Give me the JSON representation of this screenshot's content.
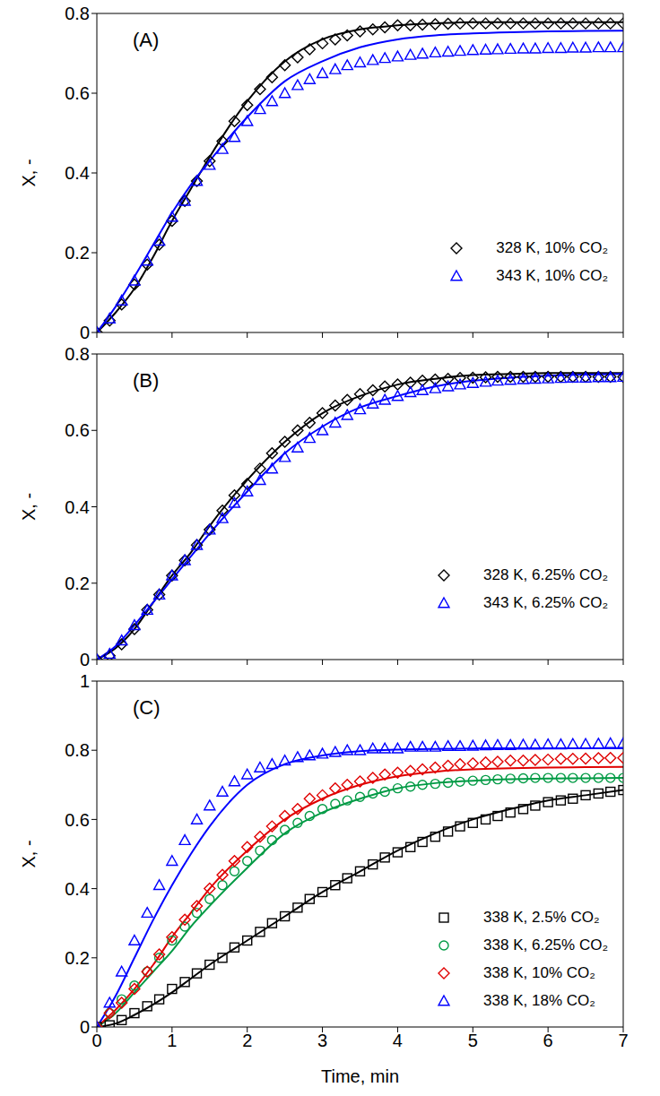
{
  "chart_data": [
    {
      "type": "scatter",
      "annotations": [
        "(A)"
      ],
      "y_label": "X, -",
      "x": [
        0,
        0.17,
        0.33,
        0.5,
        0.67,
        0.83,
        1,
        1.17,
        1.33,
        1.5,
        1.67,
        1.83,
        2,
        2.17,
        2.33,
        2.5,
        2.67,
        2.83,
        3,
        3.17,
        3.33,
        3.5,
        3.67,
        3.83,
        4,
        4.17,
        4.33,
        4.5,
        4.67,
        4.83,
        5,
        5.17,
        5.33,
        5.5,
        5.67,
        5.83,
        6,
        6.17,
        6.33,
        6.5,
        6.67,
        6.83,
        7
      ],
      "fit_x": [
        0,
        0.25,
        0.5,
        0.75,
        1,
        1.25,
        1.5,
        2,
        2.5,
        3,
        3.5,
        4,
        4.5,
        5,
        5.5,
        6,
        6.5,
        7
      ],
      "xlim": [
        0,
        7
      ],
      "xticks": [
        0,
        1,
        2,
        3,
        4,
        5,
        6,
        7
      ],
      "ylim": [
        0,
        0.8
      ],
      "yticks": [
        0,
        0.2,
        0.4,
        0.6,
        0.8
      ],
      "tick_labels": "y",
      "grid": false,
      "legend": "lower right",
      "series": [
        {
          "name": "328 K, 10% CO₂",
          "color": "#000000",
          "marker": "diamond",
          "line_style": "solid",
          "values": [
            0,
            0.03,
            0.07,
            0.12,
            0.17,
            0.22,
            0.28,
            0.33,
            0.38,
            0.43,
            0.48,
            0.53,
            0.57,
            0.61,
            0.64,
            0.67,
            0.69,
            0.71,
            0.725,
            0.735,
            0.745,
            0.755,
            0.76,
            0.765,
            0.77,
            0.77,
            0.772,
            0.773,
            0.774,
            0.775,
            0.775,
            0.775,
            0.775,
            0.775,
            0.775,
            0.775,
            0.775,
            0.775,
            0.775,
            0.775,
            0.775,
            0.775,
            0.775
          ],
          "fit": [
            0,
            0.05,
            0.11,
            0.19,
            0.28,
            0.36,
            0.44,
            0.58,
            0.68,
            0.735,
            0.76,
            0.77,
            0.775,
            0.778,
            0.778,
            0.778,
            0.778,
            0.778
          ]
        },
        {
          "name": "343 K, 10% CO₂",
          "color": "#0000ff",
          "marker": "triangle",
          "line_style": "solid",
          "values": [
            0,
            0.035,
            0.08,
            0.13,
            0.18,
            0.23,
            0.29,
            0.33,
            0.38,
            0.42,
            0.46,
            0.49,
            0.53,
            0.56,
            0.58,
            0.6,
            0.62,
            0.635,
            0.65,
            0.66,
            0.67,
            0.677,
            0.683,
            0.688,
            0.692,
            0.696,
            0.699,
            0.702,
            0.704,
            0.706,
            0.708,
            0.709,
            0.71,
            0.711,
            0.712,
            0.712,
            0.713,
            0.713,
            0.714,
            0.714,
            0.715,
            0.715,
            0.715
          ],
          "fit": [
            0,
            0.065,
            0.14,
            0.22,
            0.3,
            0.37,
            0.43,
            0.54,
            0.63,
            0.68,
            0.715,
            0.735,
            0.745,
            0.75,
            0.753,
            0.755,
            0.756,
            0.757
          ]
        }
      ]
    },
    {
      "type": "scatter",
      "annotations": [
        "(B)"
      ],
      "y_label": "X, -",
      "x": [
        0,
        0.17,
        0.33,
        0.5,
        0.67,
        0.83,
        1,
        1.17,
        1.33,
        1.5,
        1.67,
        1.83,
        2,
        2.17,
        2.33,
        2.5,
        2.67,
        2.83,
        3,
        3.17,
        3.33,
        3.5,
        3.67,
        3.83,
        4,
        4.17,
        4.33,
        4.5,
        4.67,
        4.83,
        5,
        5.17,
        5.33,
        5.5,
        5.67,
        5.83,
        6,
        6.17,
        6.33,
        6.5,
        6.67,
        6.83,
        7
      ],
      "fit_x": [
        0,
        0.25,
        0.5,
        0.75,
        1,
        1.25,
        1.5,
        2,
        2.5,
        3,
        3.5,
        4,
        4.5,
        5,
        5.5,
        6,
        6.5,
        7
      ],
      "xlim": [
        0,
        7
      ],
      "xticks": [
        0,
        1,
        2,
        3,
        4,
        5,
        6,
        7
      ],
      "ylim": [
        0,
        0.8
      ],
      "yticks": [
        0,
        0.2,
        0.4,
        0.6,
        0.8
      ],
      "tick_labels": "y",
      "grid": false,
      "legend": "lower right",
      "series": [
        {
          "name": "328 K, 6.25% CO₂",
          "color": "#000000",
          "marker": "diamond",
          "line_style": "solid",
          "values": [
            0,
            0.01,
            0.04,
            0.08,
            0.13,
            0.17,
            0.22,
            0.26,
            0.3,
            0.34,
            0.39,
            0.43,
            0.46,
            0.5,
            0.54,
            0.57,
            0.6,
            0.62,
            0.645,
            0.665,
            0.68,
            0.695,
            0.705,
            0.715,
            0.72,
            0.725,
            0.73,
            0.733,
            0.735,
            0.737,
            0.738,
            0.739,
            0.74,
            0.74,
            0.74,
            0.74,
            0.74,
            0.74,
            0.74,
            0.74,
            0.74,
            0.74,
            0.74
          ],
          "fit": [
            0,
            0.03,
            0.08,
            0.15,
            0.22,
            0.28,
            0.35,
            0.47,
            0.57,
            0.645,
            0.69,
            0.72,
            0.735,
            0.745,
            0.748,
            0.75,
            0.75,
            0.75
          ]
        },
        {
          "name": "343 K, 6.25% CO₂",
          "color": "#0000ff",
          "marker": "triangle",
          "line_style": "solid",
          "values": [
            0,
            0.015,
            0.05,
            0.09,
            0.13,
            0.17,
            0.22,
            0.26,
            0.3,
            0.34,
            0.37,
            0.41,
            0.44,
            0.47,
            0.5,
            0.53,
            0.555,
            0.58,
            0.6,
            0.62,
            0.64,
            0.655,
            0.67,
            0.68,
            0.69,
            0.7,
            0.705,
            0.71,
            0.715,
            0.72,
            0.724,
            0.727,
            0.73,
            0.732,
            0.734,
            0.735,
            0.736,
            0.737,
            0.738,
            0.738,
            0.739,
            0.739,
            0.74
          ],
          "fit": [
            0,
            0.035,
            0.09,
            0.15,
            0.21,
            0.27,
            0.33,
            0.44,
            0.54,
            0.61,
            0.66,
            0.69,
            0.715,
            0.73,
            0.738,
            0.743,
            0.746,
            0.748
          ]
        }
      ]
    },
    {
      "type": "scatter",
      "annotations": [
        "(C)"
      ],
      "y_label": "X, -",
      "x_label": "Time, min",
      "x": [
        0,
        0.17,
        0.33,
        0.5,
        0.67,
        0.83,
        1,
        1.17,
        1.33,
        1.5,
        1.67,
        1.83,
        2,
        2.17,
        2.33,
        2.5,
        2.67,
        2.83,
        3,
        3.17,
        3.33,
        3.5,
        3.67,
        3.83,
        4,
        4.17,
        4.33,
        4.5,
        4.67,
        4.83,
        5,
        5.17,
        5.33,
        5.5,
        5.67,
        5.83,
        6,
        6.17,
        6.33,
        6.5,
        6.67,
        6.83,
        7
      ],
      "fit_x": [
        0,
        0.25,
        0.5,
        0.75,
        1,
        1.25,
        1.5,
        2,
        2.5,
        3,
        3.5,
        4,
        4.5,
        5,
        5.5,
        6,
        6.5,
        7
      ],
      "xlim": [
        0,
        7
      ],
      "xticks": [
        0,
        1,
        2,
        3,
        4,
        5,
        6,
        7
      ],
      "ylim": [
        0,
        1
      ],
      "yticks": [
        0,
        0.2,
        0.4,
        0.6,
        0.8,
        1
      ],
      "tick_labels": true,
      "grid": false,
      "legend": "lower right",
      "series": [
        {
          "name": "338 K, 2.5% CO₂",
          "color": "#000000",
          "marker": "square",
          "line_style": "solid",
          "values": [
            0,
            0.005,
            0.02,
            0.04,
            0.06,
            0.08,
            0.11,
            0.13,
            0.155,
            0.18,
            0.2,
            0.23,
            0.25,
            0.275,
            0.3,
            0.32,
            0.345,
            0.37,
            0.39,
            0.41,
            0.43,
            0.45,
            0.47,
            0.49,
            0.505,
            0.52,
            0.535,
            0.55,
            0.565,
            0.58,
            0.59,
            0.6,
            0.61,
            0.62,
            0.63,
            0.64,
            0.65,
            0.655,
            0.66,
            0.67,
            0.675,
            0.68,
            0.685
          ],
          "fit": [
            0,
            0.01,
            0.035,
            0.065,
            0.1,
            0.14,
            0.18,
            0.25,
            0.32,
            0.39,
            0.45,
            0.51,
            0.56,
            0.6,
            0.63,
            0.655,
            0.67,
            0.685
          ]
        },
        {
          "name": "338 K, 6.25% CO₂",
          "color": "#009a44",
          "marker": "circle",
          "line_style": "solid",
          "values": [
            0,
            0.04,
            0.08,
            0.12,
            0.16,
            0.2,
            0.25,
            0.29,
            0.33,
            0.37,
            0.41,
            0.45,
            0.48,
            0.51,
            0.54,
            0.57,
            0.59,
            0.61,
            0.63,
            0.645,
            0.655,
            0.665,
            0.675,
            0.68,
            0.69,
            0.695,
            0.7,
            0.703,
            0.706,
            0.709,
            0.712,
            0.714,
            0.716,
            0.718,
            0.719,
            0.72,
            0.72,
            0.72,
            0.72,
            0.72,
            0.72,
            0.72,
            0.72
          ],
          "fit": [
            0,
            0.04,
            0.1,
            0.16,
            0.22,
            0.29,
            0.35,
            0.46,
            0.56,
            0.62,
            0.66,
            0.69,
            0.705,
            0.712,
            0.716,
            0.718,
            0.719,
            0.72
          ]
        },
        {
          "name": "338 K, 10% CO₂",
          "color": "#e00000",
          "marker": "diamond",
          "line_style": "solid",
          "values": [
            0,
            0.04,
            0.07,
            0.11,
            0.16,
            0.21,
            0.26,
            0.31,
            0.35,
            0.4,
            0.44,
            0.48,
            0.52,
            0.55,
            0.58,
            0.61,
            0.63,
            0.66,
            0.67,
            0.69,
            0.7,
            0.71,
            0.72,
            0.73,
            0.735,
            0.74,
            0.745,
            0.75,
            0.755,
            0.76,
            0.762,
            0.765,
            0.767,
            0.77,
            0.77,
            0.772,
            0.773,
            0.775,
            0.775,
            0.776,
            0.777,
            0.778,
            0.778
          ],
          "fit": [
            0,
            0.05,
            0.11,
            0.18,
            0.26,
            0.33,
            0.4,
            0.51,
            0.6,
            0.66,
            0.7,
            0.725,
            0.738,
            0.745,
            0.748,
            0.75,
            0.751,
            0.752
          ]
        },
        {
          "name": "338 K, 18% CO₂",
          "color": "#0000ff",
          "marker": "triangle",
          "line_style": "solid",
          "values": [
            0,
            0.07,
            0.16,
            0.25,
            0.33,
            0.41,
            0.48,
            0.54,
            0.6,
            0.64,
            0.68,
            0.71,
            0.73,
            0.75,
            0.76,
            0.77,
            0.78,
            0.785,
            0.79,
            0.795,
            0.8,
            0.8,
            0.805,
            0.805,
            0.805,
            0.81,
            0.81,
            0.81,
            0.812,
            0.812,
            0.813,
            0.814,
            0.815,
            0.815,
            0.816,
            0.816,
            0.817,
            0.817,
            0.818,
            0.818,
            0.819,
            0.82,
            0.82
          ],
          "fit": [
            0,
            0.09,
            0.2,
            0.31,
            0.41,
            0.5,
            0.58,
            0.7,
            0.76,
            0.785,
            0.797,
            0.802,
            0.804,
            0.805,
            0.806,
            0.806,
            0.806,
            0.806
          ]
        }
      ]
    }
  ]
}
